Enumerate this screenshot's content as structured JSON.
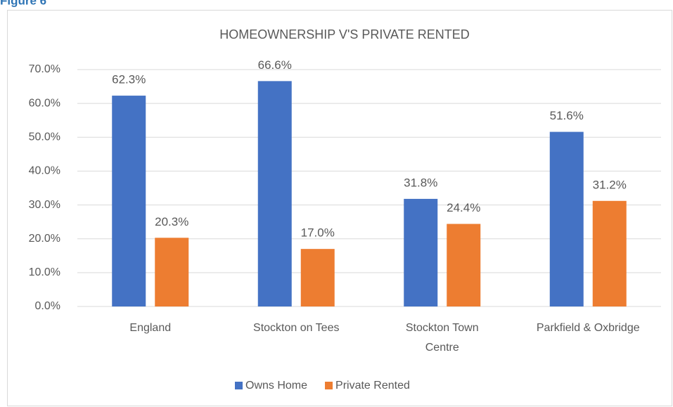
{
  "figure_label": "Figure 6",
  "chart_data": {
    "type": "bar",
    "title": "HOMEOWNERSHIP V'S PRIVATE RENTED",
    "categories": [
      "England",
      "Stockton on Tees",
      "Stockton Town Centre",
      "Parkfield & Oxbridge"
    ],
    "series": [
      {
        "name": "Owns Home",
        "color": "#4472c4",
        "values": [
          62.3,
          66.6,
          31.8,
          51.6
        ],
        "value_labels": [
          "62.3%",
          "66.6%",
          "31.8%",
          "51.6%"
        ]
      },
      {
        "name": "Private Rented",
        "color": "#ed7d31",
        "values": [
          20.3,
          17.0,
          24.4,
          31.2
        ],
        "value_labels": [
          "20.3%",
          "17.0%",
          "24.4%",
          "31.2%"
        ]
      }
    ],
    "ylim": [
      0,
      70
    ],
    "yticks": [
      {
        "value": 0,
        "label": "0.0%"
      },
      {
        "value": 10,
        "label": "10.0%"
      },
      {
        "value": 20,
        "label": "20.0%"
      },
      {
        "value": 30,
        "label": "30.0%"
      },
      {
        "value": 40,
        "label": "40.0%"
      },
      {
        "value": 50,
        "label": "50.0%"
      },
      {
        "value": 60,
        "label": "60.0%"
      },
      {
        "value": 70,
        "label": "70.0%"
      }
    ],
    "grid": true,
    "legend": "bottom"
  }
}
